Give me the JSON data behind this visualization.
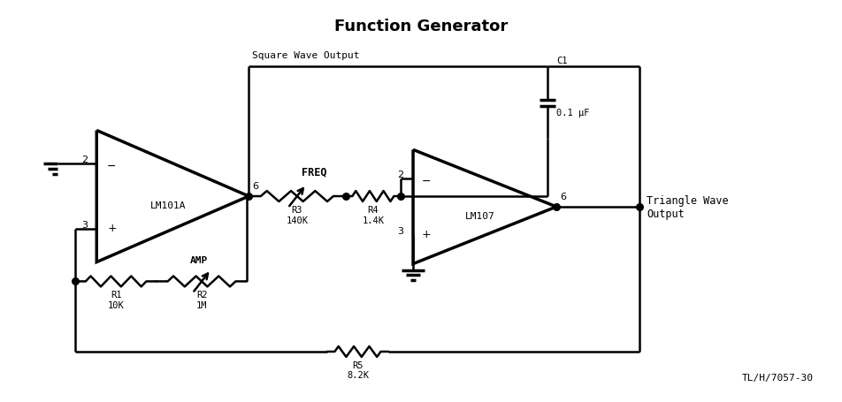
{
  "title": "Function Generator",
  "title_fontsize": 13,
  "title_fontweight": "bold",
  "bg_color": "#ffffff",
  "line_color": "#000000",
  "lw": 1.8,
  "lw2": 2.5,
  "dot_r": 5.5,
  "figsize": [
    9.53,
    4.56
  ],
  "dpi": 100,
  "labels": {
    "op1": "LM101A",
    "op2": "LM107",
    "r1": "R1\n10K",
    "r2": "R2\n1M",
    "r3": "R3\n140K",
    "r4": "R4\n1.4K",
    "r5": "R5\n8.2K",
    "c1_top": "C1",
    "c1_bot": "0.1 μF",
    "freq": "FREQ",
    "amp": "AMP",
    "sq": "Square Wave Output",
    "tri": "Triangle Wave\nOutput",
    "ref": "TL/H/7057-30"
  }
}
